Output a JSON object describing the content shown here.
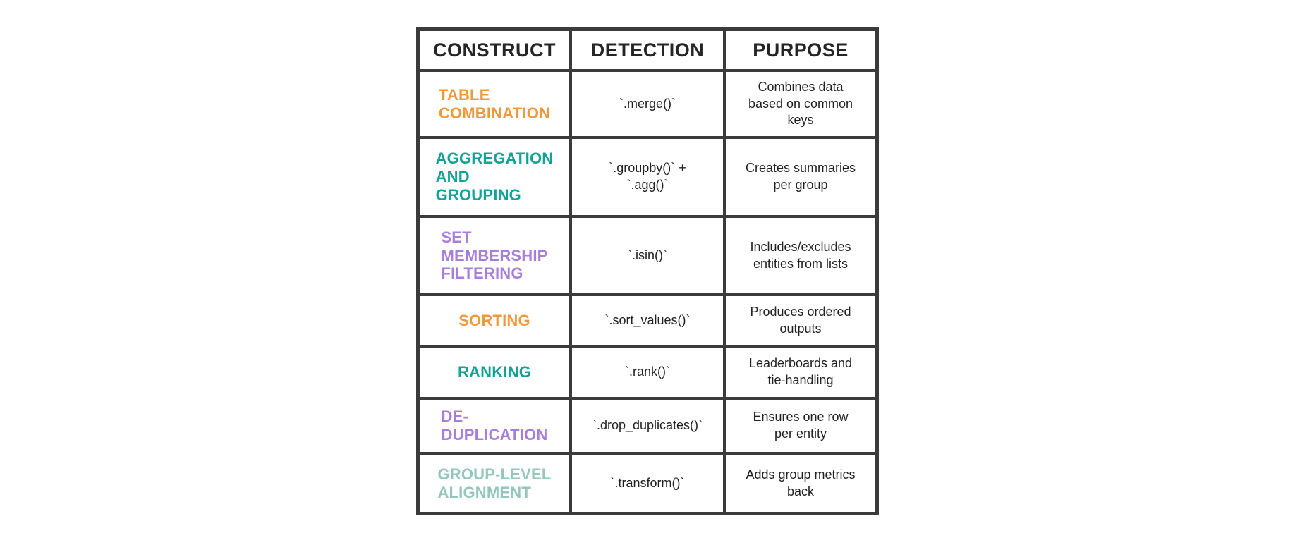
{
  "table": {
    "border_color": "#3b3b3b",
    "cell_background": "#ffffff",
    "header_text_color": "#252525",
    "body_text_color": "#212121",
    "accent_colors": {
      "orange": "#f0983c",
      "teal": "#12a296",
      "purple": "#a77eda",
      "seafoam": "#94c6bd"
    },
    "headers": [
      "CONSTRUCT",
      "DETECTION",
      "PURPOSE"
    ],
    "rows": [
      {
        "construct": "TABLE\nCOMBINATION",
        "color": "#f0983c",
        "detection": "`.merge()`",
        "purpose": "Combines data\nbased on common\nkeys"
      },
      {
        "construct": "AGGREGATION\nAND\nGROUPING",
        "color": "#12a296",
        "detection": "`.groupby()` +\n`.agg()`",
        "purpose": "Creates summaries\nper group"
      },
      {
        "construct": "SET\nMEMBERSHIP\nFILTERING",
        "color": "#a77eda",
        "detection": "`.isin()`",
        "purpose": "Includes/excludes\nentities from lists"
      },
      {
        "construct": "SORTING",
        "color": "#f0983c",
        "detection": "`.sort_values()`",
        "purpose": "Produces ordered\noutputs"
      },
      {
        "construct": "RANKING",
        "color": "#12a296",
        "detection": "`.rank()`",
        "purpose": "Leaderboards and\ntie-handling"
      },
      {
        "construct": "DE-\nDUPLICATION",
        "color": "#a77eda",
        "detection": "`.drop_duplicates()`",
        "purpose": "Ensures one row\nper entity"
      },
      {
        "construct": "GROUP-LEVEL\nALIGNMENT",
        "color": "#94c6bd",
        "detection": "`.transform()`",
        "purpose": "Adds group metrics\nback"
      }
    ]
  }
}
